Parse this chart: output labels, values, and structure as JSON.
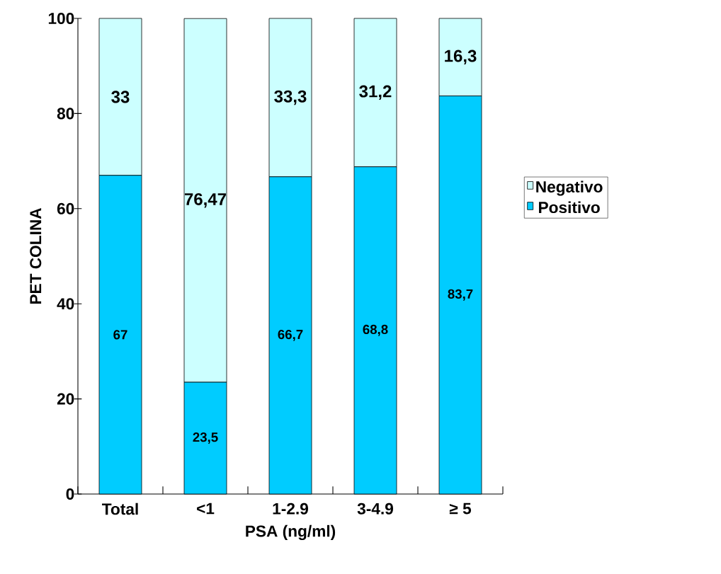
{
  "chart_data": {
    "type": "bar",
    "stacked": true,
    "xlabel": "PSA (ng/ml)",
    "ylabel": "PET COLINA",
    "categories": [
      "Total",
      "<1",
      "1-2.9",
      "3-4.9",
      "≥ 5"
    ],
    "series": [
      {
        "name": "Positivo",
        "color": "#00ccff",
        "values": [
          67,
          23.5,
          66.7,
          68.8,
          83.7
        ],
        "value_labels": [
          "67",
          "23,5",
          "66,7",
          "68,8",
          "83,7"
        ]
      },
      {
        "name": "Negativo",
        "color": "#ccffff",
        "values": [
          33,
          76.47,
          33.3,
          31.2,
          16.3
        ],
        "value_labels": [
          "33",
          "76,47",
          "33,3",
          "31,2",
          "16,3"
        ]
      }
    ],
    "ylim": [
      0,
      100
    ],
    "yticks": [
      0,
      20,
      40,
      60,
      80,
      100
    ],
    "legend": "right"
  }
}
